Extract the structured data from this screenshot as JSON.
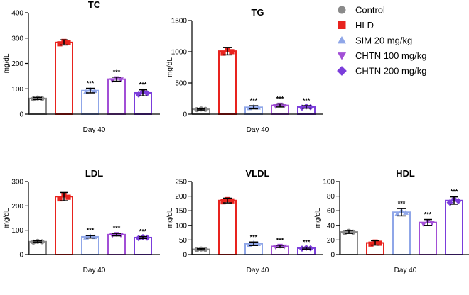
{
  "chart_data": {
    "type": "bar",
    "groups": [
      "Control",
      "HLD",
      "SIM 20 mg/kg",
      "CHTN 100 mg/kg",
      "CHTN 200 mg/kg"
    ],
    "colors": [
      "#8a8a8a",
      "#e8231e",
      "#8fa6e8",
      "#a24fd6",
      "#7b3ddb"
    ],
    "markers": [
      "circle",
      "square",
      "triangle-up",
      "triangle-down",
      "diamond"
    ],
    "legend": {
      "placement": "top-right",
      "entries": [
        "Control",
        "HLD",
        "SIM 20 mg/kg",
        "CHTN 100 mg/kg",
        "CHTN 200 mg/kg"
      ]
    },
    "panels": [
      {
        "title": "TC",
        "ylabel": "mg/dL",
        "xlabel": "Day 40",
        "ylim": [
          0,
          400
        ],
        "yticks": [
          "0",
          "100",
          "200",
          "300",
          "400"
        ],
        "values": [
          62,
          283,
          93,
          138,
          84
        ],
        "errors": [
          4,
          10,
          9,
          8,
          12
        ],
        "annotations": [
          "",
          "",
          "***",
          "***",
          "***"
        ]
      },
      {
        "title": "TG",
        "ylabel": "mg/dL",
        "xlabel": "Day 40",
        "ylim": [
          0,
          1500
        ],
        "yticks": [
          "0",
          "500",
          "1000",
          "1500"
        ],
        "values": [
          78,
          1010,
          110,
          140,
          115
        ],
        "errors": [
          10,
          60,
          25,
          25,
          20
        ],
        "annotations": [
          "",
          "",
          "***",
          "***",
          "***"
        ]
      },
      {
        "title": "LDL",
        "ylabel": "mg/dL",
        "xlabel": "Day 40",
        "ylim": [
          0,
          300
        ],
        "yticks": [
          "0",
          "100",
          "200",
          "300"
        ],
        "values": [
          53,
          238,
          73,
          82,
          70
        ],
        "errors": [
          3,
          17,
          5,
          5,
          4
        ],
        "annotations": [
          "",
          "",
          "***",
          "***",
          "***"
        ]
      },
      {
        "title": "VLDL",
        "ylabel": "mg/dL",
        "xlabel": "Day 40",
        "ylim": [
          0,
          250
        ],
        "yticks": [
          "0",
          "50",
          "100",
          "150",
          "200",
          "250"
        ],
        "values": [
          18,
          185,
          37,
          28,
          22
        ],
        "errors": [
          2,
          8,
          6,
          4,
          3
        ],
        "annotations": [
          "",
          "",
          "***",
          "***",
          "***"
        ]
      },
      {
        "title": "HDL",
        "ylabel": "mg/dL",
        "xlabel": "Day 40",
        "ylim": [
          0,
          100
        ],
        "yticks": [
          "0",
          "20",
          "40",
          "60",
          "80",
          "100"
        ],
        "values": [
          31,
          16,
          58,
          44,
          74
        ],
        "errors": [
          2,
          3,
          5,
          4,
          5
        ],
        "annotations": [
          "",
          "",
          "***",
          "***",
          "***"
        ]
      }
    ]
  }
}
